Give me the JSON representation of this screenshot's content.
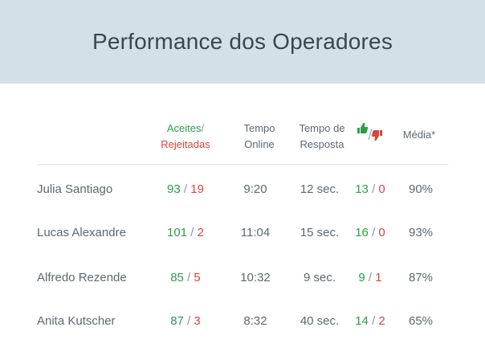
{
  "title": "Performance dos Operadores",
  "headers": {
    "accepted": "Aceites",
    "slash": "/",
    "rejected": "Rejeitadas",
    "online_line1": "Tempo",
    "online_line2": "Online",
    "response_line1": "Tempo de",
    "response_line2": "Resposta",
    "rating_icons": [
      "thumbs-up-icon",
      "thumbs-down-icon"
    ],
    "average": "Média*"
  },
  "colors": {
    "positive": "#2a9d4a",
    "negative": "#d9453c",
    "header_bg": "#d3e0e8"
  },
  "operators": [
    {
      "name": "Julia Santiago",
      "accepted": "93",
      "rejected": "19",
      "online": "9:20",
      "response": "12 sec.",
      "likes": "13",
      "dislikes": "0",
      "average": "90%"
    },
    {
      "name": "Lucas Alexandre",
      "accepted": "101",
      "rejected": "2",
      "online": "11:04",
      "response": "15 sec.",
      "likes": "16",
      "dislikes": "0",
      "average": "93%"
    },
    {
      "name": "Alfredo Rezende",
      "accepted": "85",
      "rejected": "5",
      "online": "10:32",
      "response": "9 sec.",
      "likes": "9",
      "dislikes": "1",
      "average": "87%"
    },
    {
      "name": "Anita Kutscher",
      "accepted": "87",
      "rejected": "3",
      "online": "8:32",
      "response": "40 sec.",
      "likes": "14",
      "dislikes": "2",
      "average": "65%"
    }
  ]
}
